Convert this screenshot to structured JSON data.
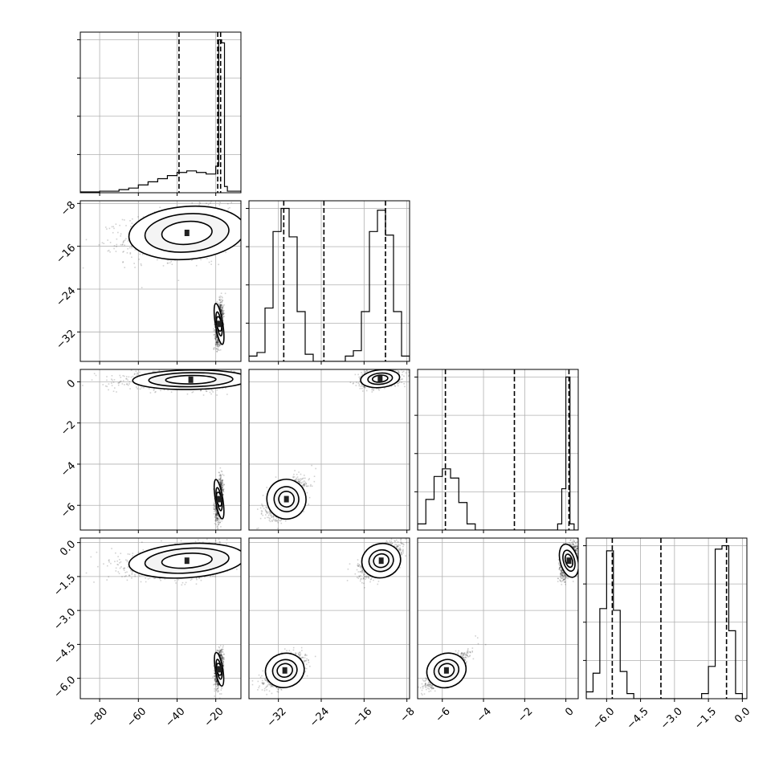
{
  "chart_data": {
    "type": "corner",
    "title": "",
    "grid": true,
    "variables": [
      {
        "range": [
          -90,
          -7
        ],
        "ticks": [
          -80,
          -60,
          -40,
          -20
        ],
        "tick_labels": [
          "−80",
          "−60",
          "−40",
          "−20"
        ],
        "quantiles": [
          -39.0,
          -19.0,
          -17.5
        ]
      },
      {
        "range": [
          -37.5,
          -7.5
        ],
        "ticks": [
          -32,
          -24,
          -16,
          -8
        ],
        "tick_labels": [
          "−32",
          "−24",
          "−16",
          "−8"
        ],
        "quantiles": [
          -31.0,
          -23.5,
          -12.0
        ]
      },
      {
        "range": [
          -7.2,
          0.6
        ],
        "ticks": [
          -6,
          -4,
          -2,
          0
        ],
        "tick_labels": [
          "−6",
          "−4",
          "−2",
          "0"
        ],
        "quantiles": [
          -5.85,
          -2.5,
          0.15
        ]
      },
      {
        "range": [
          -6.9,
          0.2
        ],
        "ticks": [
          -6.0,
          -4.5,
          -3.0,
          -1.5,
          0.0
        ],
        "tick_labels": [
          "−6.0",
          "−4.5",
          "−3.0",
          "−1.5",
          "0.0"
        ],
        "quantiles": [
          -5.75,
          -3.6,
          -0.7
        ]
      }
    ],
    "histograms": [
      {
        "panel": "0-0",
        "edges": [
          -90,
          -85,
          -80,
          -75,
          -70,
          -65,
          -60,
          -55,
          -50,
          -45,
          -40,
          -35,
          -30,
          -25,
          -20,
          -18.5,
          -17,
          -15.5,
          -14,
          -7
        ],
        "counts": [
          0.5,
          0.5,
          1,
          1,
          2,
          3,
          5,
          7,
          9,
          11,
          13,
          14,
          13,
          12,
          17,
          98,
          96,
          4,
          1
        ]
      },
      {
        "panel": "1-1",
        "edges": [
          -37.5,
          -36,
          -34.5,
          -33,
          -31.5,
          -30,
          -28.5,
          -27,
          -25.5,
          -24,
          -22.5,
          -21,
          -19.5,
          -18,
          -16.5,
          -15,
          -13.5,
          -12,
          -10.5,
          -9,
          -7.5
        ],
        "counts": [
          3,
          5,
          30,
          73,
          86,
          70,
          28,
          4,
          0,
          0,
          0,
          0,
          3,
          6,
          28,
          73,
          85,
          71,
          28,
          3
        ]
      },
      {
        "panel": "2-2",
        "edges": [
          -7.2,
          -6.8,
          -6.4,
          -6.0,
          -5.6,
          -5.2,
          -4.8,
          -4.4,
          -4.0,
          -0.4,
          -0.2,
          0.0,
          0.2,
          0.4,
          0.6
        ],
        "counts": [
          4,
          20,
          35,
          40,
          34,
          18,
          4,
          0,
          0,
          4,
          27,
          100,
          4,
          0
        ]
      },
      {
        "panel": "3-3",
        "edges": [
          -6.9,
          -6.6,
          -6.3,
          -6.0,
          -5.7,
          -5.4,
          -5.1,
          -4.8,
          -4.5,
          -1.8,
          -1.5,
          -1.2,
          -0.9,
          -0.6,
          -0.3,
          0.0,
          0.2
        ],
        "counts": [
          4,
          15,
          53,
          87,
          52,
          16,
          3,
          0,
          0,
          3,
          19,
          88,
          90,
          40,
          3,
          0
        ]
      }
    ],
    "scatter_2d": [
      {
        "panel": "1-0",
        "clusters": [
          {
            "mx": -30,
            "my": -13.5,
            "sx": 14,
            "sy": 2.3,
            "rho": 0.25,
            "skew": -1,
            "fracs": [
              0.35,
              0.7,
              0.9
            ]
          },
          {
            "mx": -18.3,
            "my": -30.5,
            "sx": 0.9,
            "sy": 1.8,
            "rho": 0.3,
            "skew": 0,
            "fracs": [
              0.25,
              0.55,
              0.9
            ]
          }
        ]
      },
      {
        "panel": "2-0",
        "clusters": [
          {
            "mx": -28,
            "my": 0.1,
            "sx": 14,
            "sy": 0.22,
            "rho": 0.1,
            "skew": -1,
            "fracs": [
              0.35,
              0.7,
              0.9
            ]
          },
          {
            "mx": -18.3,
            "my": -5.7,
            "sx": 0.9,
            "sy": 0.45,
            "rho": 0.3,
            "skew": 0,
            "fracs": [
              0.25,
              0.55,
              0.9
            ]
          }
        ]
      },
      {
        "panel": "2-1",
        "clusters": [
          {
            "mx": -13,
            "my": 0.15,
            "sx": 1.7,
            "sy": 0.2,
            "rho": 0.3,
            "skew": 0,
            "fracs": [
              0.3,
              0.6,
              0.9
            ]
          },
          {
            "mx": -30.5,
            "my": -5.7,
            "sx": 1.7,
            "sy": 0.45,
            "rho": 0.6,
            "skew": 0,
            "fracs": [
              0.3,
              0.6,
              0.9
            ]
          }
        ]
      },
      {
        "panel": "3-0",
        "clusters": [
          {
            "mx": -30,
            "my": -0.8,
            "sx": 14,
            "sy": 0.35,
            "rho": 0.3,
            "skew": -1,
            "fracs": [
              0.35,
              0.7,
              0.9
            ]
          },
          {
            "mx": -18.3,
            "my": -5.6,
            "sx": 0.9,
            "sy": 0.35,
            "rho": 0.3,
            "skew": 0,
            "fracs": [
              0.25,
              0.55,
              0.9
            ]
          }
        ]
      },
      {
        "panel": "3-1",
        "clusters": [
          {
            "mx": -12.8,
            "my": -0.8,
            "sx": 1.7,
            "sy": 0.35,
            "rho": 0.6,
            "skew": 0,
            "fracs": [
              0.3,
              0.6,
              0.9
            ]
          },
          {
            "mx": -30.8,
            "my": -5.65,
            "sx": 1.7,
            "sy": 0.35,
            "rho": 0.6,
            "skew": 0,
            "fracs": [
              0.3,
              0.6,
              0.9
            ]
          }
        ]
      },
      {
        "panel": "3-2",
        "clusters": [
          {
            "mx": 0.15,
            "my": -0.8,
            "sx": 0.2,
            "sy": 0.35,
            "rho": 0.5,
            "skew": 0,
            "fracs": [
              0.3,
              0.6,
              0.9
            ]
          },
          {
            "mx": -5.8,
            "my": -5.65,
            "sx": 0.45,
            "sy": 0.35,
            "rho": 0.85,
            "skew": 0,
            "fracs": [
              0.3,
              0.6,
              0.9
            ]
          }
        ]
      }
    ]
  }
}
